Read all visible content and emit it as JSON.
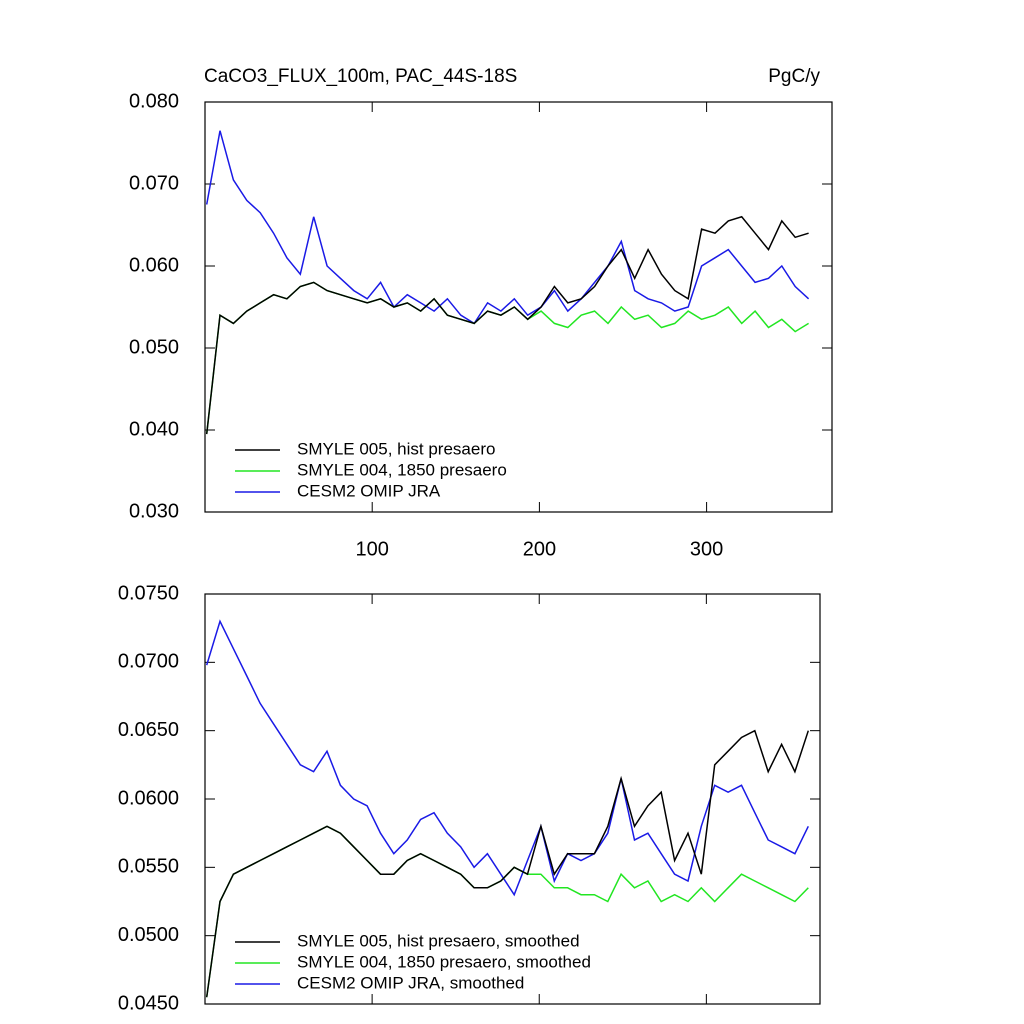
{
  "chart_data": [
    {
      "type": "line",
      "title": "CaCO3_FLUX_100m, PAC_44S-18S",
      "units_label": "PgC/y",
      "x": [
        1,
        9,
        17,
        25,
        33,
        41,
        49,
        57,
        65,
        73,
        81,
        89,
        97,
        105,
        113,
        121,
        129,
        137,
        145,
        153,
        161,
        169,
        177,
        185,
        193,
        201,
        209,
        217,
        225,
        233,
        241,
        249,
        257,
        265,
        273,
        281,
        289,
        297,
        305,
        313,
        321,
        329,
        337,
        345,
        353,
        361
      ],
      "xlim": [
        0,
        375
      ],
      "xticks": [
        100,
        200,
        300
      ],
      "xtick_labels": true,
      "ylim": [
        0.03,
        0.08
      ],
      "yticks": [
        {
          "value": 0.03,
          "label": "0.030"
        },
        {
          "value": 0.04,
          "label": "0.040"
        },
        {
          "value": 0.05,
          "label": "0.050"
        },
        {
          "value": 0.06,
          "label": "0.060"
        },
        {
          "value": 0.07,
          "label": "0.070"
        },
        {
          "value": 0.08,
          "label": "0.080"
        }
      ],
      "legend": "lower left",
      "series": [
        {
          "name": "SMYLE 005, hist presaero",
          "color": "#000000",
          "values": [
            0.0395,
            0.054,
            0.053,
            0.0545,
            0.0555,
            0.0565,
            0.056,
            0.0575,
            0.058,
            0.057,
            0.0565,
            0.056,
            0.0555,
            0.056,
            0.055,
            0.0555,
            0.0545,
            0.056,
            0.054,
            0.0535,
            0.053,
            0.0545,
            0.054,
            0.055,
            0.0535,
            0.055,
            0.0575,
            0.0555,
            0.056,
            0.0575,
            0.06,
            0.062,
            0.0585,
            0.062,
            0.059,
            0.057,
            0.056,
            0.0645,
            0.064,
            0.0655,
            0.066,
            0.064,
            0.062,
            0.0655,
            0.0635,
            0.064
          ]
        },
        {
          "name": "SMYLE 004, 1850 presaero",
          "color": "#22e622",
          "values": [
            0.0395,
            0.054,
            0.053,
            0.0545,
            0.0555,
            0.0565,
            0.056,
            0.0575,
            0.058,
            0.057,
            0.0565,
            0.056,
            0.0555,
            0.056,
            0.055,
            0.0555,
            0.0545,
            0.056,
            0.054,
            0.0535,
            0.053,
            0.0545,
            0.054,
            0.055,
            0.0535,
            0.0545,
            0.053,
            0.0525,
            0.054,
            0.0545,
            0.053,
            0.055,
            0.0535,
            0.054,
            0.0525,
            0.053,
            0.0545,
            0.0535,
            0.054,
            0.055,
            0.053,
            0.0545,
            0.0525,
            0.0535,
            0.052,
            0.053
          ]
        },
        {
          "name": "CESM2 OMIP JRA",
          "color": "#1a1ae6",
          "values": [
            0.0675,
            0.0765,
            0.0705,
            0.068,
            0.0665,
            0.064,
            0.061,
            0.059,
            0.066,
            0.06,
            0.0585,
            0.057,
            0.056,
            0.058,
            0.055,
            0.0565,
            0.0555,
            0.0545,
            0.056,
            0.054,
            0.053,
            0.0555,
            0.0545,
            0.056,
            0.054,
            0.055,
            0.057,
            0.0545,
            0.056,
            0.058,
            0.06,
            0.063,
            0.057,
            0.056,
            0.0555,
            0.0545,
            0.055,
            0.06,
            0.061,
            0.062,
            0.06,
            0.058,
            0.0585,
            0.06,
            0.0575,
            0.056
          ]
        }
      ]
    },
    {
      "type": "line",
      "x": [
        1,
        9,
        17,
        25,
        33,
        41,
        49,
        57,
        65,
        73,
        81,
        89,
        97,
        105,
        113,
        121,
        129,
        137,
        145,
        153,
        161,
        169,
        177,
        185,
        193,
        201,
        209,
        217,
        225,
        233,
        241,
        249,
        257,
        265,
        273,
        281,
        289,
        297,
        305,
        313,
        321,
        329,
        337,
        345,
        353,
        361
      ],
      "xlim": [
        0,
        368
      ],
      "xticks": [
        100,
        200,
        300
      ],
      "xtick_labels": false,
      "ylim": [
        0.045,
        0.075
      ],
      "yticks": [
        {
          "value": 0.045,
          "label": "0.0450"
        },
        {
          "value": 0.05,
          "label": "0.0500"
        },
        {
          "value": 0.055,
          "label": "0.0550"
        },
        {
          "value": 0.06,
          "label": "0.0600"
        },
        {
          "value": 0.065,
          "label": "0.0650"
        },
        {
          "value": 0.07,
          "label": "0.0700"
        },
        {
          "value": 0.075,
          "label": "0.0750"
        }
      ],
      "legend": "lower left",
      "series": [
        {
          "name": "SMYLE 005, hist presaero, smoothed",
          "color": "#000000",
          "values": [
            0.0455,
            0.0525,
            0.0545,
            0.055,
            0.0555,
            0.056,
            0.0565,
            0.057,
            0.0575,
            0.058,
            0.0575,
            0.0565,
            0.0555,
            0.0545,
            0.0545,
            0.0555,
            0.056,
            0.0555,
            0.055,
            0.0545,
            0.0535,
            0.0535,
            0.054,
            0.055,
            0.0545,
            0.058,
            0.0545,
            0.056,
            0.056,
            0.056,
            0.058,
            0.0615,
            0.058,
            0.0595,
            0.0605,
            0.0555,
            0.0575,
            0.0545,
            0.0625,
            0.0635,
            0.0645,
            0.065,
            0.062,
            0.064,
            0.062,
            0.065
          ]
        },
        {
          "name": "SMYLE 004, 1850 presaero, smoothed",
          "color": "#22e622",
          "values": [
            0.0455,
            0.0525,
            0.0545,
            0.055,
            0.0555,
            0.056,
            0.0565,
            0.057,
            0.0575,
            0.058,
            0.0575,
            0.0565,
            0.0555,
            0.0545,
            0.0545,
            0.0555,
            0.056,
            0.0555,
            0.055,
            0.0545,
            0.0535,
            0.0535,
            0.054,
            0.055,
            0.0545,
            0.0545,
            0.0535,
            0.0535,
            0.053,
            0.053,
            0.0525,
            0.0545,
            0.0535,
            0.054,
            0.0525,
            0.053,
            0.0525,
            0.0535,
            0.0525,
            0.0535,
            0.0545,
            0.054,
            0.0535,
            0.053,
            0.0525,
            0.0535
          ]
        },
        {
          "name": "CESM2 OMIP JRA, smoothed",
          "color": "#1a1ae6",
          "values": [
            0.0698,
            0.073,
            0.071,
            0.069,
            0.067,
            0.0655,
            0.064,
            0.0625,
            0.062,
            0.0635,
            0.061,
            0.06,
            0.0595,
            0.0575,
            0.056,
            0.057,
            0.0585,
            0.059,
            0.0575,
            0.0565,
            0.055,
            0.056,
            0.0545,
            0.053,
            0.0555,
            0.058,
            0.054,
            0.056,
            0.0555,
            0.056,
            0.0575,
            0.0615,
            0.057,
            0.0575,
            0.056,
            0.0545,
            0.054,
            0.058,
            0.061,
            0.0605,
            0.061,
            0.059,
            0.057,
            0.0565,
            0.056,
            0.058
          ]
        }
      ]
    }
  ]
}
